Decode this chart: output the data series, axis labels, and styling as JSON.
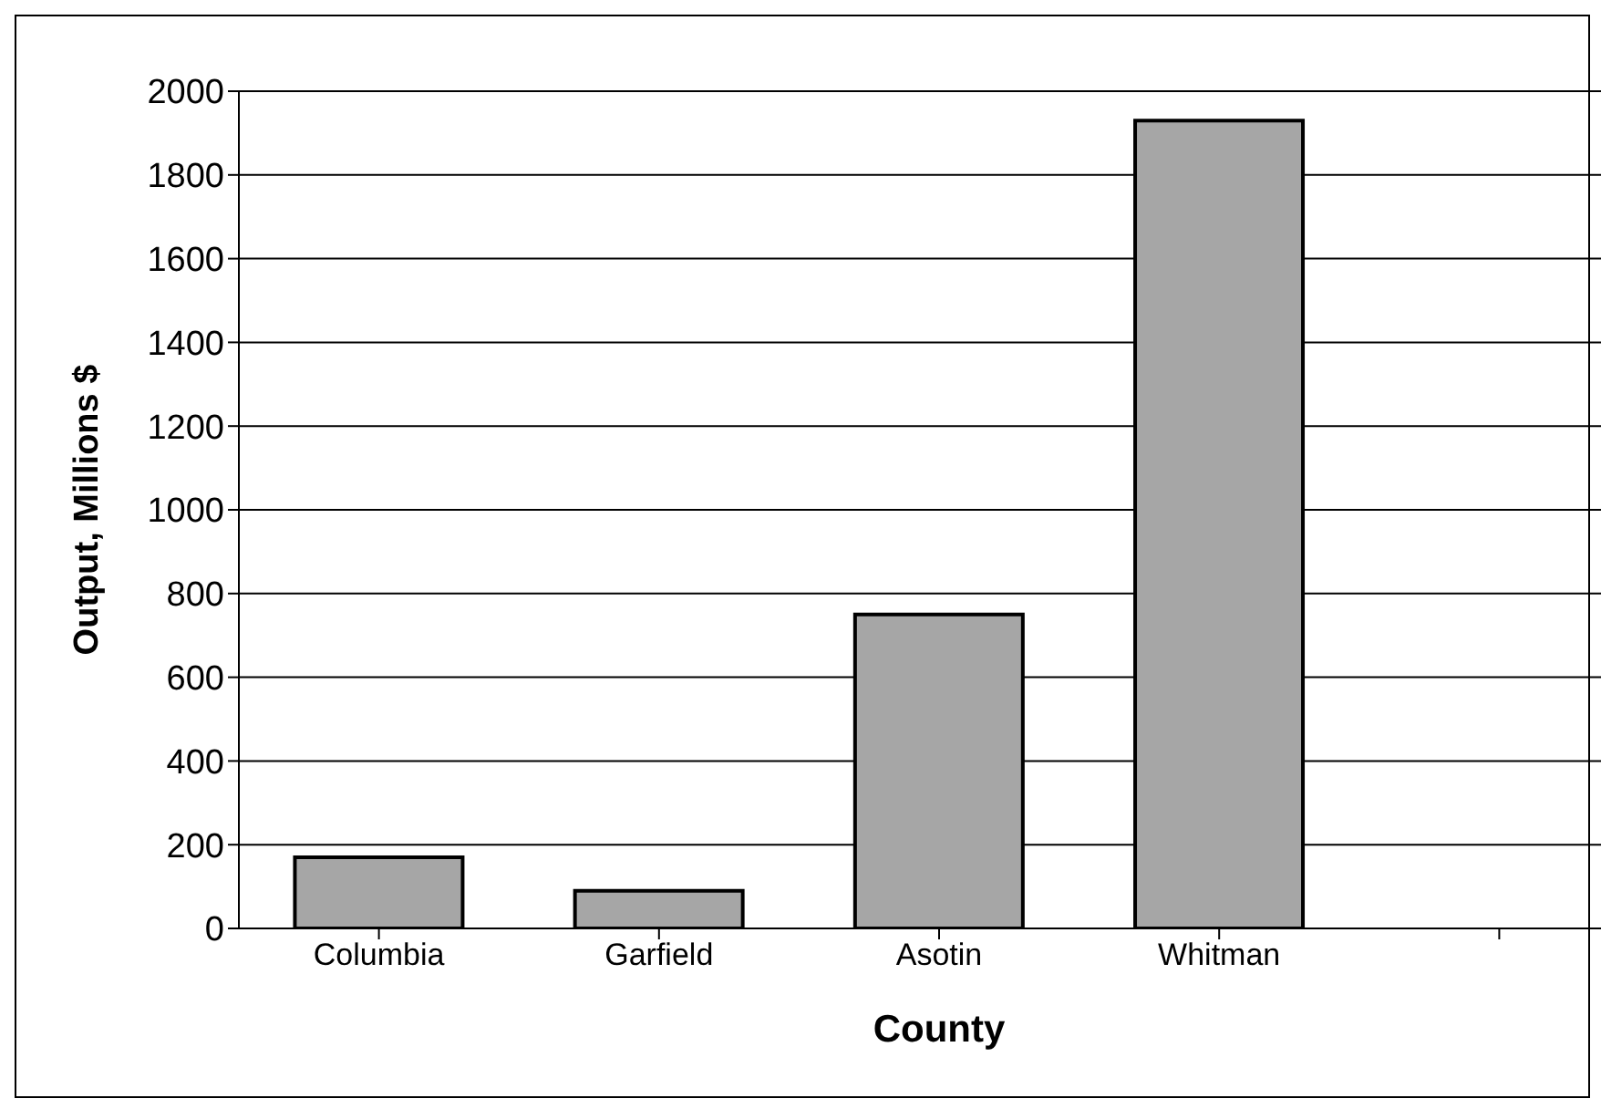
{
  "chart_data": {
    "type": "bar",
    "xlabel": "County",
    "ylabel": "Output, Millions $",
    "categories": [
      "Columbia",
      "Garfield",
      "Asotin",
      "Whitman",
      null
    ],
    "values": [
      170,
      90,
      750,
      1930,
      null
    ],
    "color": "#a6a6a6",
    "ylim": [
      0,
      2000
    ],
    "yticks": [
      0,
      200,
      400,
      600,
      800,
      1000,
      1200,
      1400,
      1600,
      1800,
      2000
    ],
    "grid": "y",
    "legend": false
  }
}
